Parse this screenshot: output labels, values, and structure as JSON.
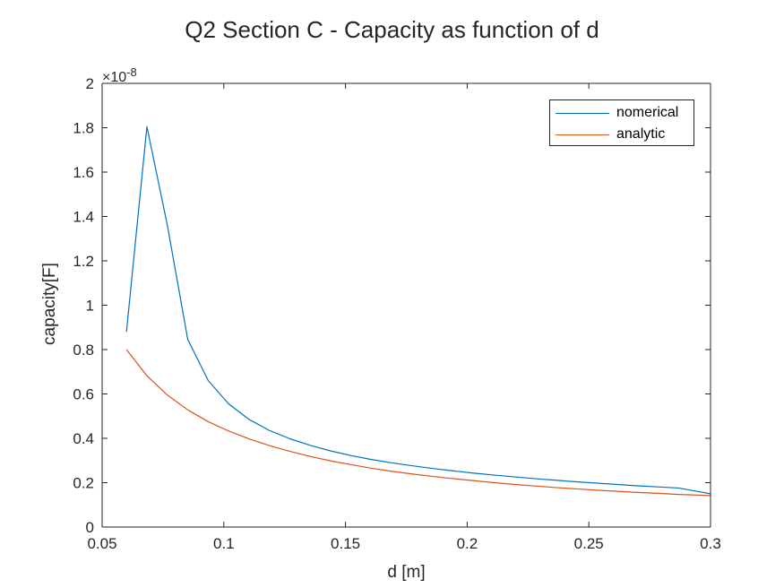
{
  "chart_data": {
    "type": "line",
    "title": "Q2 Section C - Capacity as function of d",
    "xlabel": "d [m]",
    "ylabel": "capacity[F]",
    "y_exponent_base": "×10",
    "y_exponent_power": "-8",
    "xlim": [
      0.05,
      0.3
    ],
    "ylim": [
      0,
      2
    ],
    "xticks": [
      "0.05",
      "0.1",
      "0.15",
      "0.2",
      "0.25",
      "0.3"
    ],
    "yticks": [
      "0",
      "0.2",
      "0.4",
      "0.6",
      "0.8",
      "1",
      "1.2",
      "1.4",
      "1.6",
      "1.8",
      "2"
    ],
    "grid": false,
    "legend_position": "top-right",
    "series": [
      {
        "name": "nomerical",
        "color": "#0072BD",
        "x": [
          0.06,
          0.0684,
          0.0768,
          0.0852,
          0.0936,
          0.102,
          0.1104,
          0.1188,
          0.1272,
          0.1356,
          0.144,
          0.1524,
          0.1608,
          0.1692,
          0.1776,
          0.186,
          0.1944,
          0.2028,
          0.2112,
          0.2196,
          0.228,
          0.2364,
          0.2448,
          0.2532,
          0.2616,
          0.27,
          0.2784,
          0.2868,
          0.3
        ],
        "values": [
          0.88,
          1.805,
          1.36,
          0.845,
          0.66,
          0.555,
          0.485,
          0.435,
          0.398,
          0.368,
          0.343,
          0.322,
          0.304,
          0.289,
          0.276,
          0.264,
          0.253,
          0.243,
          0.234,
          0.226,
          0.218,
          0.211,
          0.204,
          0.198,
          0.192,
          0.186,
          0.181,
          0.176,
          0.15
        ]
      },
      {
        "name": "analytic",
        "color": "#D95319",
        "x": [
          0.06,
          0.0684,
          0.0768,
          0.0852,
          0.0936,
          0.102,
          0.1104,
          0.1188,
          0.1272,
          0.1356,
          0.144,
          0.1524,
          0.1608,
          0.1692,
          0.1776,
          0.186,
          0.1944,
          0.2028,
          0.2112,
          0.2196,
          0.228,
          0.2364,
          0.2448,
          0.2532,
          0.2616,
          0.27,
          0.2784,
          0.2868,
          0.3
        ],
        "values": [
          0.8,
          0.682,
          0.595,
          0.528,
          0.475,
          0.433,
          0.397,
          0.367,
          0.341,
          0.318,
          0.298,
          0.281,
          0.265,
          0.251,
          0.239,
          0.228,
          0.218,
          0.209,
          0.2,
          0.192,
          0.185,
          0.178,
          0.172,
          0.166,
          0.161,
          0.156,
          0.152,
          0.147,
          0.142
        ]
      }
    ]
  }
}
